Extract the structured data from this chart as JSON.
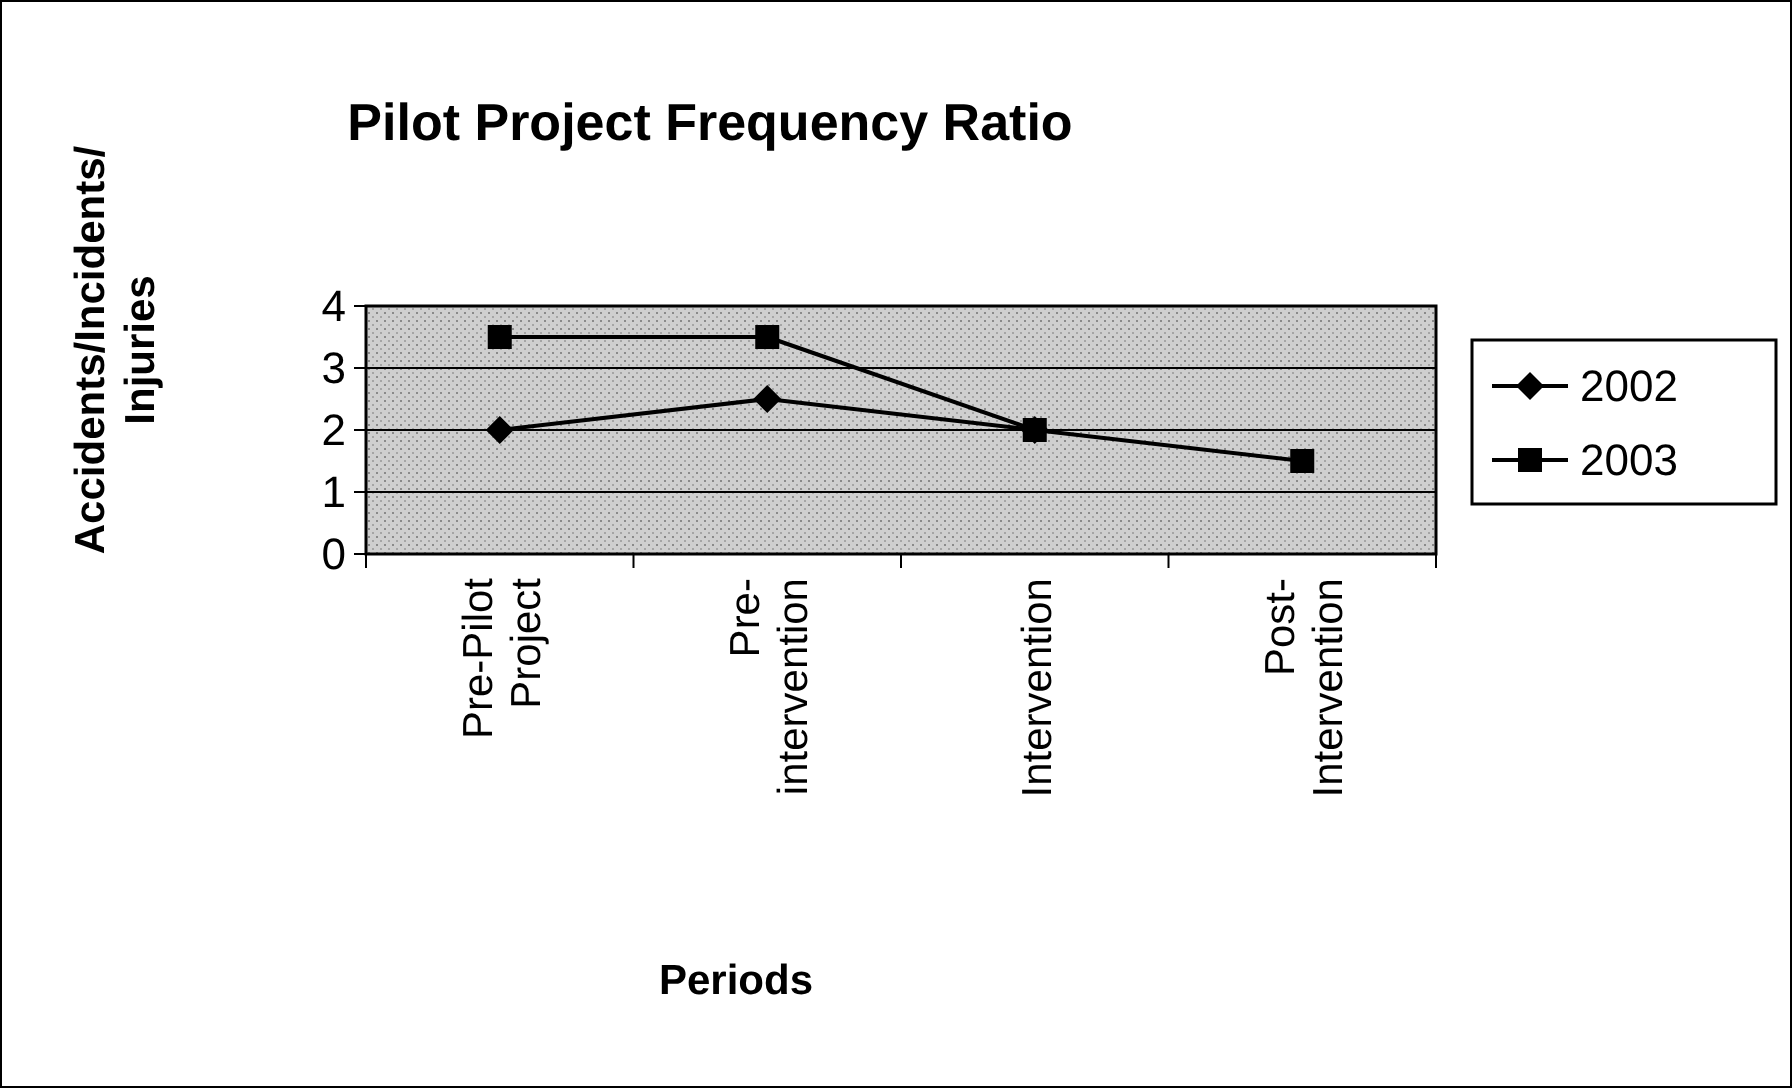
{
  "chart_data": {
    "type": "line",
    "title": "Pilot Project Frequency Ratio",
    "xlabel": "Periods",
    "ylabel": "Accidents/Incidents/ Injuries",
    "categories": [
      "Pre-Pilot Project",
      "Pre-intervention",
      "Intervention",
      "Post-Intervention"
    ],
    "series": [
      {
        "name": "2002",
        "color": "#000000",
        "marker": "diamond",
        "values": [
          2,
          2.5,
          2,
          null
        ]
      },
      {
        "name": "2003",
        "color": "#000000",
        "marker": "square",
        "values": [
          3.5,
          3.5,
          2,
          1.5
        ]
      }
    ],
    "ylim": [
      0,
      4
    ],
    "yticks": [
      0,
      1,
      2,
      3,
      4
    ],
    "grid": "y",
    "legend": "right"
  }
}
